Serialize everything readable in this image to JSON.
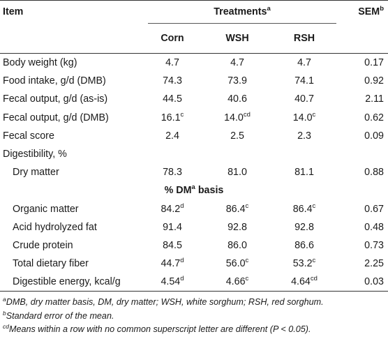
{
  "header": {
    "item": "Item",
    "treatments": "Treatments",
    "treatments_sup": "a",
    "sem": "SEM",
    "sem_sup": "b",
    "columns": [
      "Corn",
      "WSH",
      "RSH"
    ]
  },
  "rows": [
    {
      "label": "Body weight (kg)",
      "corn": "4.7",
      "corn_sup": "",
      "wsh": "4.7",
      "wsh_sup": "",
      "rsh": "4.7",
      "rsh_sup": "",
      "sem": "0.17"
    },
    {
      "label": "Food intake, g/d (DMB)",
      "corn": "74.3",
      "corn_sup": "",
      "wsh": "73.9",
      "wsh_sup": "",
      "rsh": "74.1",
      "rsh_sup": "",
      "sem": "0.92"
    },
    {
      "label": "Fecal output, g/d (as-is)",
      "corn": "44.5",
      "corn_sup": "",
      "wsh": "40.6",
      "wsh_sup": "",
      "rsh": "40.7",
      "rsh_sup": "",
      "sem": "2.11"
    },
    {
      "label": "Fecal output, g/d (DMB)",
      "corn": "16.1",
      "corn_sup": "c",
      "wsh": "14.0",
      "wsh_sup": "cd",
      "rsh": "14.0",
      "rsh_sup": "c",
      "sem": "0.62"
    },
    {
      "label": "Fecal score",
      "corn": "2.4",
      "corn_sup": "",
      "wsh": "2.5",
      "wsh_sup": "",
      "rsh": "2.3",
      "rsh_sup": "",
      "sem": "0.09"
    },
    {
      "label": "Digestibility, %",
      "corn": "",
      "corn_sup": "",
      "wsh": "",
      "wsh_sup": "",
      "rsh": "",
      "rsh_sup": "",
      "sem": ""
    },
    {
      "label": "Dry matter",
      "corn": "78.3",
      "corn_sup": "",
      "wsh": "81.0",
      "wsh_sup": "",
      "rsh": "81.1",
      "rsh_sup": "",
      "sem": "0.88"
    }
  ],
  "section": {
    "text_pre": "% DM",
    "sup": "a",
    "text_post": " basis"
  },
  "rows2": [
    {
      "label": "Organic matter",
      "corn": "84.2",
      "corn_sup": "d",
      "wsh": "86.4",
      "wsh_sup": "c",
      "rsh": "86.4",
      "rsh_sup": "c",
      "sem": "0.67"
    },
    {
      "label": "Acid hydrolyzed fat",
      "corn": "91.4",
      "corn_sup": "",
      "wsh": "92.8",
      "wsh_sup": "",
      "rsh": "92.8",
      "rsh_sup": "",
      "sem": "0.48"
    },
    {
      "label": "Crude protein",
      "corn": "84.5",
      "corn_sup": "",
      "wsh": "86.0",
      "wsh_sup": "",
      "rsh": "86.6",
      "rsh_sup": "",
      "sem": "0.73"
    },
    {
      "label": "Total dietary fiber",
      "corn": "44.7",
      "corn_sup": "d",
      "wsh": "56.0",
      "wsh_sup": "c",
      "rsh": "53.2",
      "rsh_sup": "c",
      "sem": "2.25"
    },
    {
      "label": "Digestible energy, kcal/g",
      "corn": "4.54",
      "corn_sup": "d",
      "wsh": "4.66",
      "wsh_sup": "c",
      "rsh": "4.64",
      "rsh_sup": "cd",
      "sem": "0.03"
    }
  ],
  "notes": [
    {
      "sup": "a",
      "text": "DMB, dry matter basis, DM, dry matter; WSH, white sorghum; RSH, red sorghum."
    },
    {
      "sup": "b",
      "text": "Standard error of the mean."
    },
    {
      "sup": "cd",
      "text": "Means within a row with no common superscript letter are different (P < 0.05)."
    }
  ]
}
